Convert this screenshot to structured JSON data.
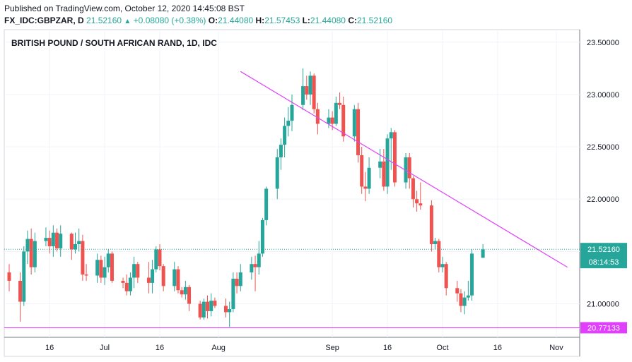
{
  "header": {
    "published": "Published on TradingView.com, October 12, 2020 14:45:08 BST",
    "symbol": "FX_IDC:GBPZAR, D",
    "last": "21.52160",
    "change": "+0.08080 (+0.38%)",
    "o_label": "O:",
    "o_value": "21.44080",
    "h_label": "H:",
    "h_value": "21.57453",
    "l_label": "L:",
    "l_value": "21.44080",
    "c_label": "C:",
    "c_value": "21.52160"
  },
  "chart_data": {
    "type": "candlestick",
    "title": "BRITISH POUND / SOUTH AFRICAN RAND, 1D, IDC",
    "ylim": [
      20.68,
      23.62
    ],
    "y_ticks": [
      {
        "value": 23.5,
        "label": "23.50000"
      },
      {
        "value": 23.0,
        "label": "23.00000"
      },
      {
        "value": 22.5,
        "label": "22.50000"
      },
      {
        "value": 22.0,
        "label": "22.00000"
      },
      {
        "value": 21.5,
        "label": "21.50000"
      },
      {
        "value": 21.0,
        "label": "21.00000"
      }
    ],
    "x_range": [
      "2020-06-05",
      "2020-11-06"
    ],
    "x_ticks": [
      {
        "date": "2020-06-16",
        "label": "16"
      },
      {
        "date": "2020-07-01",
        "label": "Jul"
      },
      {
        "date": "2020-07-16",
        "label": "16"
      },
      {
        "date": "2020-08-01",
        "label": "Aug"
      },
      {
        "date": "2020-09-01",
        "label": "Sep"
      },
      {
        "date": "2020-09-16",
        "label": "16"
      },
      {
        "date": "2020-10-01",
        "label": "Oct"
      },
      {
        "date": "2020-10-16",
        "label": "16"
      },
      {
        "date": "2020-11-01",
        "label": "Nov"
      }
    ],
    "current_price": {
      "value": 21.5216,
      "label": "21.52160",
      "countdown": "08:14:53",
      "color": "#26a69a"
    },
    "support_line": {
      "value": 20.77133,
      "label": "20.77133",
      "color": "#e040fb"
    },
    "trendline": {
      "start": {
        "date": "2020-08-07",
        "value": 23.22
      },
      "end": {
        "date": "2020-11-04",
        "value": 21.35
      },
      "color": "#e040fb"
    },
    "up_color": "#26a69a",
    "down_color": "#ef5350",
    "candles": [
      {
        "date": "2020-06-05",
        "o": 21.3,
        "h": 21.38,
        "l": 21.12,
        "c": 21.22
      },
      {
        "date": "2020-06-08",
        "o": 21.22,
        "h": 21.3,
        "l": 20.83,
        "c": 21.02
      },
      {
        "date": "2020-06-09",
        "o": 21.02,
        "h": 21.55,
        "l": 20.98,
        "c": 21.5
      },
      {
        "date": "2020-06-10",
        "o": 21.5,
        "h": 21.7,
        "l": 21.38,
        "c": 21.62
      },
      {
        "date": "2020-06-11",
        "o": 21.62,
        "h": 21.72,
        "l": 21.28,
        "c": 21.35
      },
      {
        "date": "2020-06-12",
        "o": 21.35,
        "h": 21.68,
        "l": 21.3,
        "c": 21.6
      },
      {
        "date": "2020-06-15",
        "o": 21.6,
        "h": 21.73,
        "l": 21.55,
        "c": 21.63
      },
      {
        "date": "2020-06-16",
        "o": 21.63,
        "h": 21.7,
        "l": 21.48,
        "c": 21.55
      },
      {
        "date": "2020-06-17",
        "o": 21.55,
        "h": 21.75,
        "l": 21.45,
        "c": 21.68
      },
      {
        "date": "2020-06-18",
        "o": 21.68,
        "h": 21.72,
        "l": 21.5,
        "c": 21.53
      },
      {
        "date": "2020-06-19",
        "o": 21.53,
        "h": 21.75,
        "l": 21.45,
        "c": 21.67
      },
      {
        "date": "2020-06-22",
        "o": 21.67,
        "h": 21.68,
        "l": 21.42,
        "c": 21.52
      },
      {
        "date": "2020-06-23",
        "o": 21.52,
        "h": 21.68,
        "l": 21.48,
        "c": 21.57
      },
      {
        "date": "2020-06-24",
        "o": 21.57,
        "h": 21.72,
        "l": 21.5,
        "c": 21.6
      },
      {
        "date": "2020-06-25",
        "o": 21.6,
        "h": 21.66,
        "l": 21.22,
        "c": 21.28
      },
      {
        "date": "2020-06-26",
        "o": 21.28,
        "h": 21.38,
        "l": 21.22,
        "c": 21.27
      },
      {
        "date": "2020-06-29",
        "o": 21.27,
        "h": 21.48,
        "l": 21.2,
        "c": 21.42
      },
      {
        "date": "2020-06-30",
        "o": 21.42,
        "h": 21.46,
        "l": 21.2,
        "c": 21.25
      },
      {
        "date": "2020-07-01",
        "o": 21.25,
        "h": 21.45,
        "l": 21.18,
        "c": 21.35
      },
      {
        "date": "2020-07-02",
        "o": 21.35,
        "h": 21.52,
        "l": 21.3,
        "c": 21.48
      },
      {
        "date": "2020-07-03",
        "o": 21.48,
        "h": 21.5,
        "l": 21.2,
        "c": 21.22
      },
      {
        "date": "2020-07-06",
        "o": 21.22,
        "h": 21.25,
        "l": 21.15,
        "c": 21.2
      },
      {
        "date": "2020-07-07",
        "o": 21.2,
        "h": 21.28,
        "l": 21.08,
        "c": 21.12
      },
      {
        "date": "2020-07-08",
        "o": 21.12,
        "h": 21.3,
        "l": 21.08,
        "c": 21.25
      },
      {
        "date": "2020-07-09",
        "o": 21.25,
        "h": 21.45,
        "l": 21.15,
        "c": 21.38
      },
      {
        "date": "2020-07-10",
        "o": 21.38,
        "h": 21.4,
        "l": 21.2,
        "c": 21.25
      },
      {
        "date": "2020-07-13",
        "o": 21.25,
        "h": 21.4,
        "l": 21.1,
        "c": 21.2
      },
      {
        "date": "2020-07-14",
        "o": 21.2,
        "h": 21.42,
        "l": 21.1,
        "c": 21.33
      },
      {
        "date": "2020-07-15",
        "o": 21.33,
        "h": 21.55,
        "l": 21.3,
        "c": 21.52
      },
      {
        "date": "2020-07-16",
        "o": 21.52,
        "h": 21.57,
        "l": 21.32,
        "c": 21.36
      },
      {
        "date": "2020-07-17",
        "o": 21.36,
        "h": 21.38,
        "l": 21.12,
        "c": 21.17
      },
      {
        "date": "2020-07-20",
        "o": 21.17,
        "h": 21.4,
        "l": 21.12,
        "c": 21.33
      },
      {
        "date": "2020-07-21",
        "o": 21.33,
        "h": 21.36,
        "l": 21.1,
        "c": 21.13
      },
      {
        "date": "2020-07-22",
        "o": 21.13,
        "h": 21.16,
        "l": 21.06,
        "c": 21.09
      },
      {
        "date": "2020-07-23",
        "o": 21.09,
        "h": 21.22,
        "l": 21.04,
        "c": 21.16
      },
      {
        "date": "2020-07-24",
        "o": 21.16,
        "h": 21.18,
        "l": 20.93,
        "c": 21.0
      },
      {
        "date": "2020-07-27",
        "o": 21.0,
        "h": 21.03,
        "l": 20.85,
        "c": 20.87
      },
      {
        "date": "2020-07-28",
        "o": 20.87,
        "h": 21.05,
        "l": 20.85,
        "c": 21.02
      },
      {
        "date": "2020-07-29",
        "o": 21.02,
        "h": 21.08,
        "l": 20.86,
        "c": 20.93
      },
      {
        "date": "2020-07-30",
        "o": 20.93,
        "h": 21.1,
        "l": 20.88,
        "c": 21.03
      },
      {
        "date": "2020-07-31",
        "o": 21.03,
        "h": 21.06,
        "l": 20.96,
        "c": 20.98
      },
      {
        "date": "2020-08-03",
        "o": 20.98,
        "h": 21.05,
        "l": 20.87,
        "c": 20.92
      },
      {
        "date": "2020-08-04",
        "o": 20.92,
        "h": 21.02,
        "l": 20.78,
        "c": 20.95
      },
      {
        "date": "2020-08-05",
        "o": 20.95,
        "h": 21.3,
        "l": 20.92,
        "c": 21.24
      },
      {
        "date": "2020-08-06",
        "o": 21.24,
        "h": 21.3,
        "l": 21.1,
        "c": 21.17
      },
      {
        "date": "2020-08-07",
        "o": 21.17,
        "h": 21.38,
        "l": 21.12,
        "c": 21.3
      },
      {
        "date": "2020-08-10",
        "o": 21.3,
        "h": 21.45,
        "l": 21.23,
        "c": 21.38
      },
      {
        "date": "2020-08-11",
        "o": 21.38,
        "h": 21.46,
        "l": 21.12,
        "c": 21.35
      },
      {
        "date": "2020-08-12",
        "o": 21.35,
        "h": 21.6,
        "l": 21.28,
        "c": 21.48
      },
      {
        "date": "2020-08-13",
        "o": 21.48,
        "h": 21.82,
        "l": 21.45,
        "c": 21.8
      },
      {
        "date": "2020-08-14",
        "o": 21.8,
        "h": 22.12,
        "l": 21.75,
        "c": 22.1
      },
      {
        "date": "2020-08-17",
        "o": 22.1,
        "h": 22.48,
        "l": 22.0,
        "c": 22.4
      },
      {
        "date": "2020-08-18",
        "o": 22.4,
        "h": 22.58,
        "l": 22.28,
        "c": 22.52
      },
      {
        "date": "2020-08-19",
        "o": 22.52,
        "h": 22.78,
        "l": 22.4,
        "c": 22.7
      },
      {
        "date": "2020-08-20",
        "o": 22.7,
        "h": 22.88,
        "l": 22.6,
        "c": 22.75
      },
      {
        "date": "2020-08-21",
        "o": 22.75,
        "h": 23.0,
        "l": 22.65,
        "c": 22.9
      },
      {
        "date": "2020-08-24",
        "o": 22.9,
        "h": 23.25,
        "l": 22.85,
        "c": 23.08
      },
      {
        "date": "2020-08-25",
        "o": 23.08,
        "h": 23.18,
        "l": 22.95,
        "c": 23.0
      },
      {
        "date": "2020-08-26",
        "o": 23.0,
        "h": 23.22,
        "l": 22.9,
        "c": 23.18
      },
      {
        "date": "2020-08-27",
        "o": 23.18,
        "h": 23.2,
        "l": 22.82,
        "c": 22.86
      },
      {
        "date": "2020-08-28",
        "o": 22.86,
        "h": 22.92,
        "l": 22.62,
        "c": 22.72
      },
      {
        "date": "2020-08-31",
        "o": 22.72,
        "h": 22.86,
        "l": 22.68,
        "c": 22.78
      },
      {
        "date": "2020-09-01",
        "o": 22.78,
        "h": 22.84,
        "l": 22.66,
        "c": 22.72
      },
      {
        "date": "2020-09-02",
        "o": 22.72,
        "h": 22.98,
        "l": 22.7,
        "c": 22.92
      },
      {
        "date": "2020-09-03",
        "o": 22.92,
        "h": 23.02,
        "l": 22.86,
        "c": 22.9
      },
      {
        "date": "2020-09-04",
        "o": 22.9,
        "h": 22.98,
        "l": 22.55,
        "c": 22.6
      },
      {
        "date": "2020-09-07",
        "o": 22.6,
        "h": 22.9,
        "l": 22.55,
        "c": 22.86
      },
      {
        "date": "2020-09-08",
        "o": 22.86,
        "h": 22.92,
        "l": 22.35,
        "c": 22.42
      },
      {
        "date": "2020-09-09",
        "o": 22.42,
        "h": 22.5,
        "l": 22.05,
        "c": 22.12
      },
      {
        "date": "2020-09-10",
        "o": 22.12,
        "h": 22.26,
        "l": 21.98,
        "c": 22.1
      },
      {
        "date": "2020-09-11",
        "o": 22.1,
        "h": 22.4,
        "l": 22.05,
        "c": 22.3
      },
      {
        "date": "2020-09-14",
        "o": 22.3,
        "h": 22.48,
        "l": 22.2,
        "c": 22.36
      },
      {
        "date": "2020-09-15",
        "o": 22.36,
        "h": 22.48,
        "l": 22.08,
        "c": 22.12
      },
      {
        "date": "2020-09-16",
        "o": 22.12,
        "h": 22.62,
        "l": 22.05,
        "c": 22.58
      },
      {
        "date": "2020-09-17",
        "o": 22.58,
        "h": 22.68,
        "l": 22.28,
        "c": 22.64
      },
      {
        "date": "2020-09-18",
        "o": 22.64,
        "h": 22.66,
        "l": 22.12,
        "c": 22.16
      },
      {
        "date": "2020-09-21",
        "o": 22.16,
        "h": 22.44,
        "l": 22.1,
        "c": 22.4
      },
      {
        "date": "2020-09-22",
        "o": 22.4,
        "h": 22.44,
        "l": 22.1,
        "c": 22.2
      },
      {
        "date": "2020-09-23",
        "o": 22.2,
        "h": 22.22,
        "l": 21.92,
        "c": 22.0
      },
      {
        "date": "2020-09-24",
        "o": 22.0,
        "h": 22.08,
        "l": 21.88,
        "c": 21.96
      },
      {
        "date": "2020-09-25",
        "o": 21.96,
        "h": 22.16,
        "l": 21.9,
        "c": 21.94
      },
      {
        "date": "2020-09-28",
        "o": 21.94,
        "h": 21.99,
        "l": 21.5,
        "c": 21.57
      },
      {
        "date": "2020-09-29",
        "o": 21.57,
        "h": 21.63,
        "l": 21.52,
        "c": 21.6
      },
      {
        "date": "2020-09-30",
        "o": 21.6,
        "h": 21.62,
        "l": 21.3,
        "c": 21.35
      },
      {
        "date": "2020-10-01",
        "o": 21.35,
        "h": 21.45,
        "l": 21.3,
        "c": 21.38
      },
      {
        "date": "2020-10-02",
        "o": 21.38,
        "h": 21.4,
        "l": 21.08,
        "c": 21.15
      },
      {
        "date": "2020-10-05",
        "o": 21.15,
        "h": 21.22,
        "l": 21.02,
        "c": 21.1
      },
      {
        "date": "2020-10-06",
        "o": 21.1,
        "h": 21.14,
        "l": 20.92,
        "c": 20.98
      },
      {
        "date": "2020-10-07",
        "o": 20.98,
        "h": 21.12,
        "l": 20.9,
        "c": 21.06
      },
      {
        "date": "2020-10-08",
        "o": 21.06,
        "h": 21.22,
        "l": 21.03,
        "c": 21.08
      },
      {
        "date": "2020-10-09",
        "o": 21.08,
        "h": 21.52,
        "l": 21.03,
        "c": 21.48
      },
      {
        "date": "2020-10-12",
        "o": 21.44,
        "h": 21.57,
        "l": 21.44,
        "c": 21.52
      }
    ]
  }
}
